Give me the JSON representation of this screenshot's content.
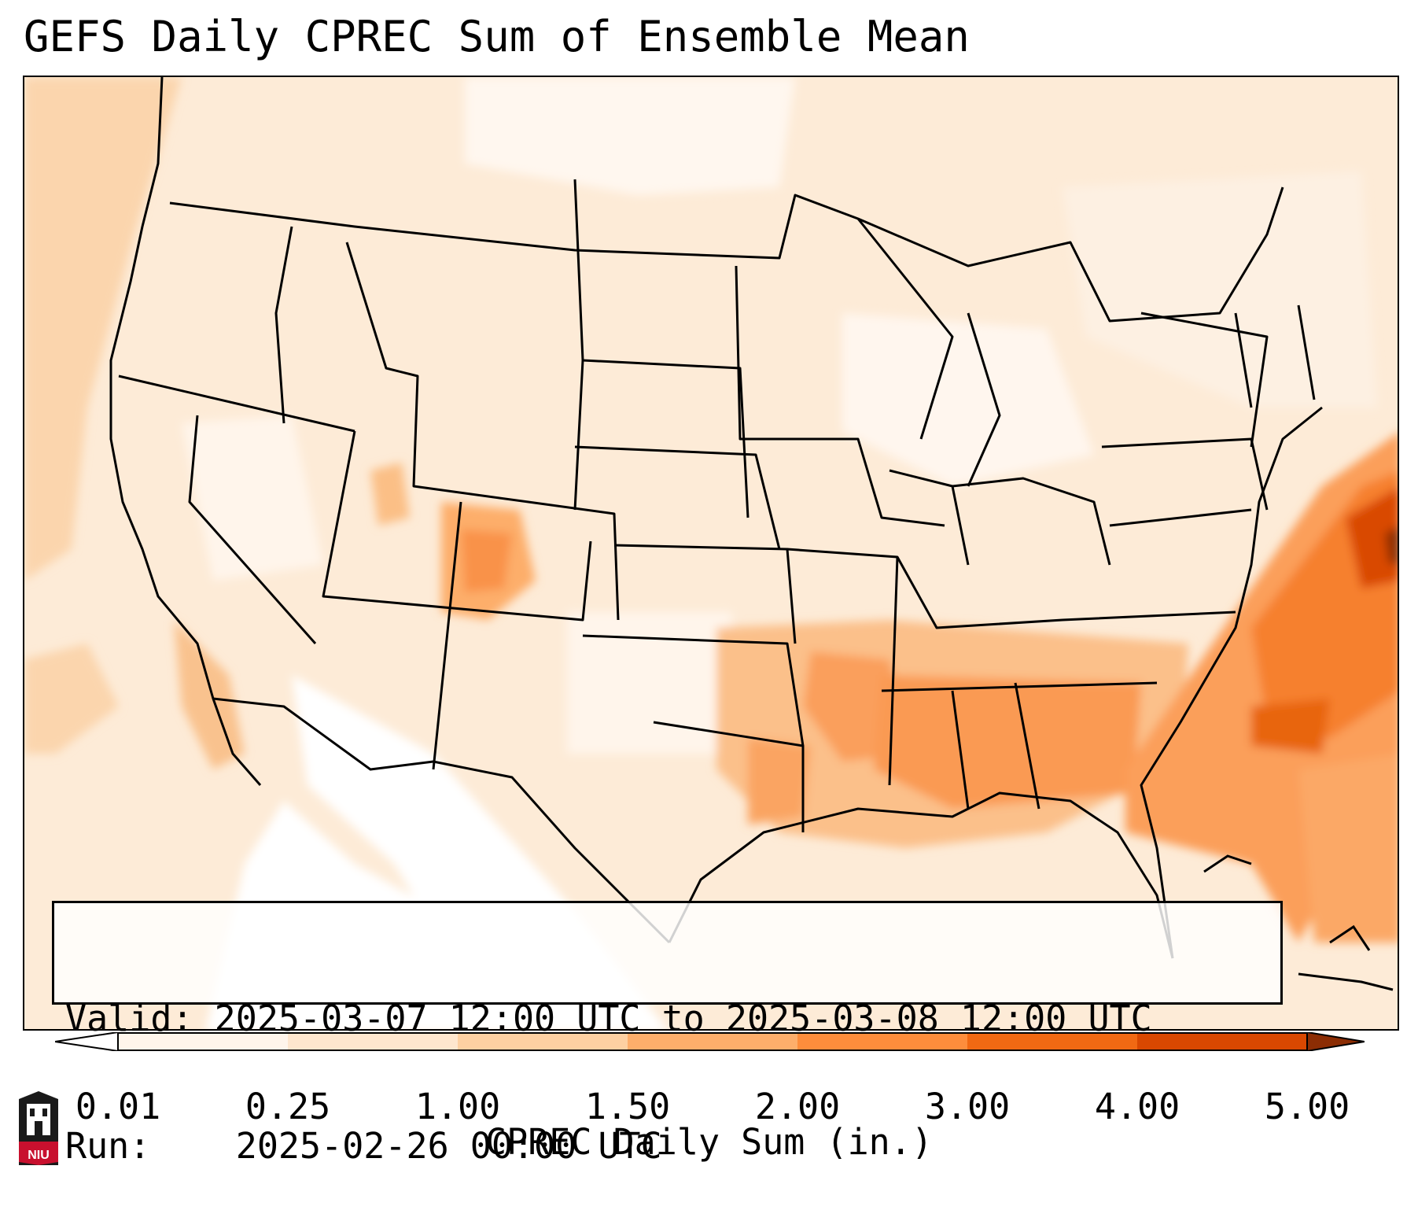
{
  "title": "GEFS Daily CPREC Sum of Ensemble Mean",
  "info": {
    "valid_label": "Valid:",
    "valid_value": "2025-03-07 12:00 UTC to 2025-03-08 12:00 UTC",
    "run_label": "Run:",
    "run_value": "2025-02-26 00:00 UTC"
  },
  "colorbar": {
    "label": "CPREC Daily Sum (in.)",
    "ticks": [
      "0.01",
      "0.25",
      "1.00",
      "1.50",
      "2.00",
      "3.00",
      "4.00",
      "5.00"
    ],
    "colors": [
      "#ffffff",
      "#fff5eb",
      "#fee6ce",
      "#fdd0a2",
      "#fdae6b",
      "#fd8d3c",
      "#f16913",
      "#d94801",
      "#8c2d04"
    ]
  },
  "logo": {
    "text": "NIU",
    "colors": {
      "banner": "#c8102e",
      "tower": "#1a1a1a"
    }
  },
  "map": {
    "region": "Continental United States",
    "field": "precipitation shading",
    "max_area": "Atlantic east of Virginia",
    "secondary_max": "Lower Mississippi Valley and Southeast"
  }
}
